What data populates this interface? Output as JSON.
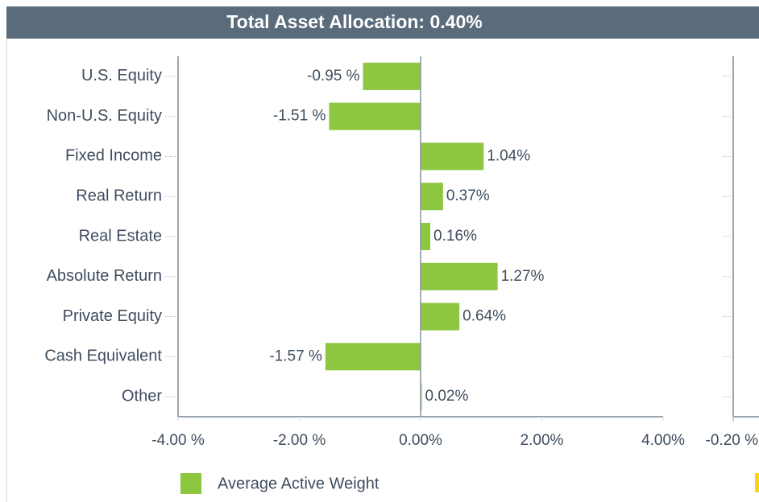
{
  "chart_data": [
    {
      "type": "bar",
      "title": "Total Asset Allocation: 0.40%",
      "categories": [
        "U.S. Equity",
        "Non-U.S. Equity",
        "Fixed Income",
        "Real Return",
        "Real Estate",
        "Absolute Return",
        "Private Equity",
        "Cash Equivalent",
        "Other"
      ],
      "series": [
        {
          "name": "Average Active Weight",
          "color": "#8dc63f",
          "values": [
            -0.95,
            -1.51,
            1.04,
            0.37,
            0.16,
            1.27,
            0.64,
            -1.57,
            0.02
          ]
        }
      ],
      "value_labels": [
        "-0.95 %",
        "-1.51 %",
        "1.04%",
        "0.37%",
        "0.16%",
        "1.27%",
        "0.64%",
        "-1.57 %",
        "0.02%"
      ],
      "xlim": [
        -4,
        4
      ],
      "xticks": [
        {
          "value": -4,
          "label": "-4.00 %"
        },
        {
          "value": -2,
          "label": "-2.00 %"
        },
        {
          "value": 0,
          "label": "0.00%"
        },
        {
          "value": 2,
          "label": "2.00%"
        },
        {
          "value": 4,
          "label": "4.00%"
        }
      ]
    },
    {
      "type": "bar",
      "color": "#f7d417",
      "xticks": [
        {
          "value": -0.2,
          "label": "-0.20 %"
        }
      ]
    }
  ]
}
